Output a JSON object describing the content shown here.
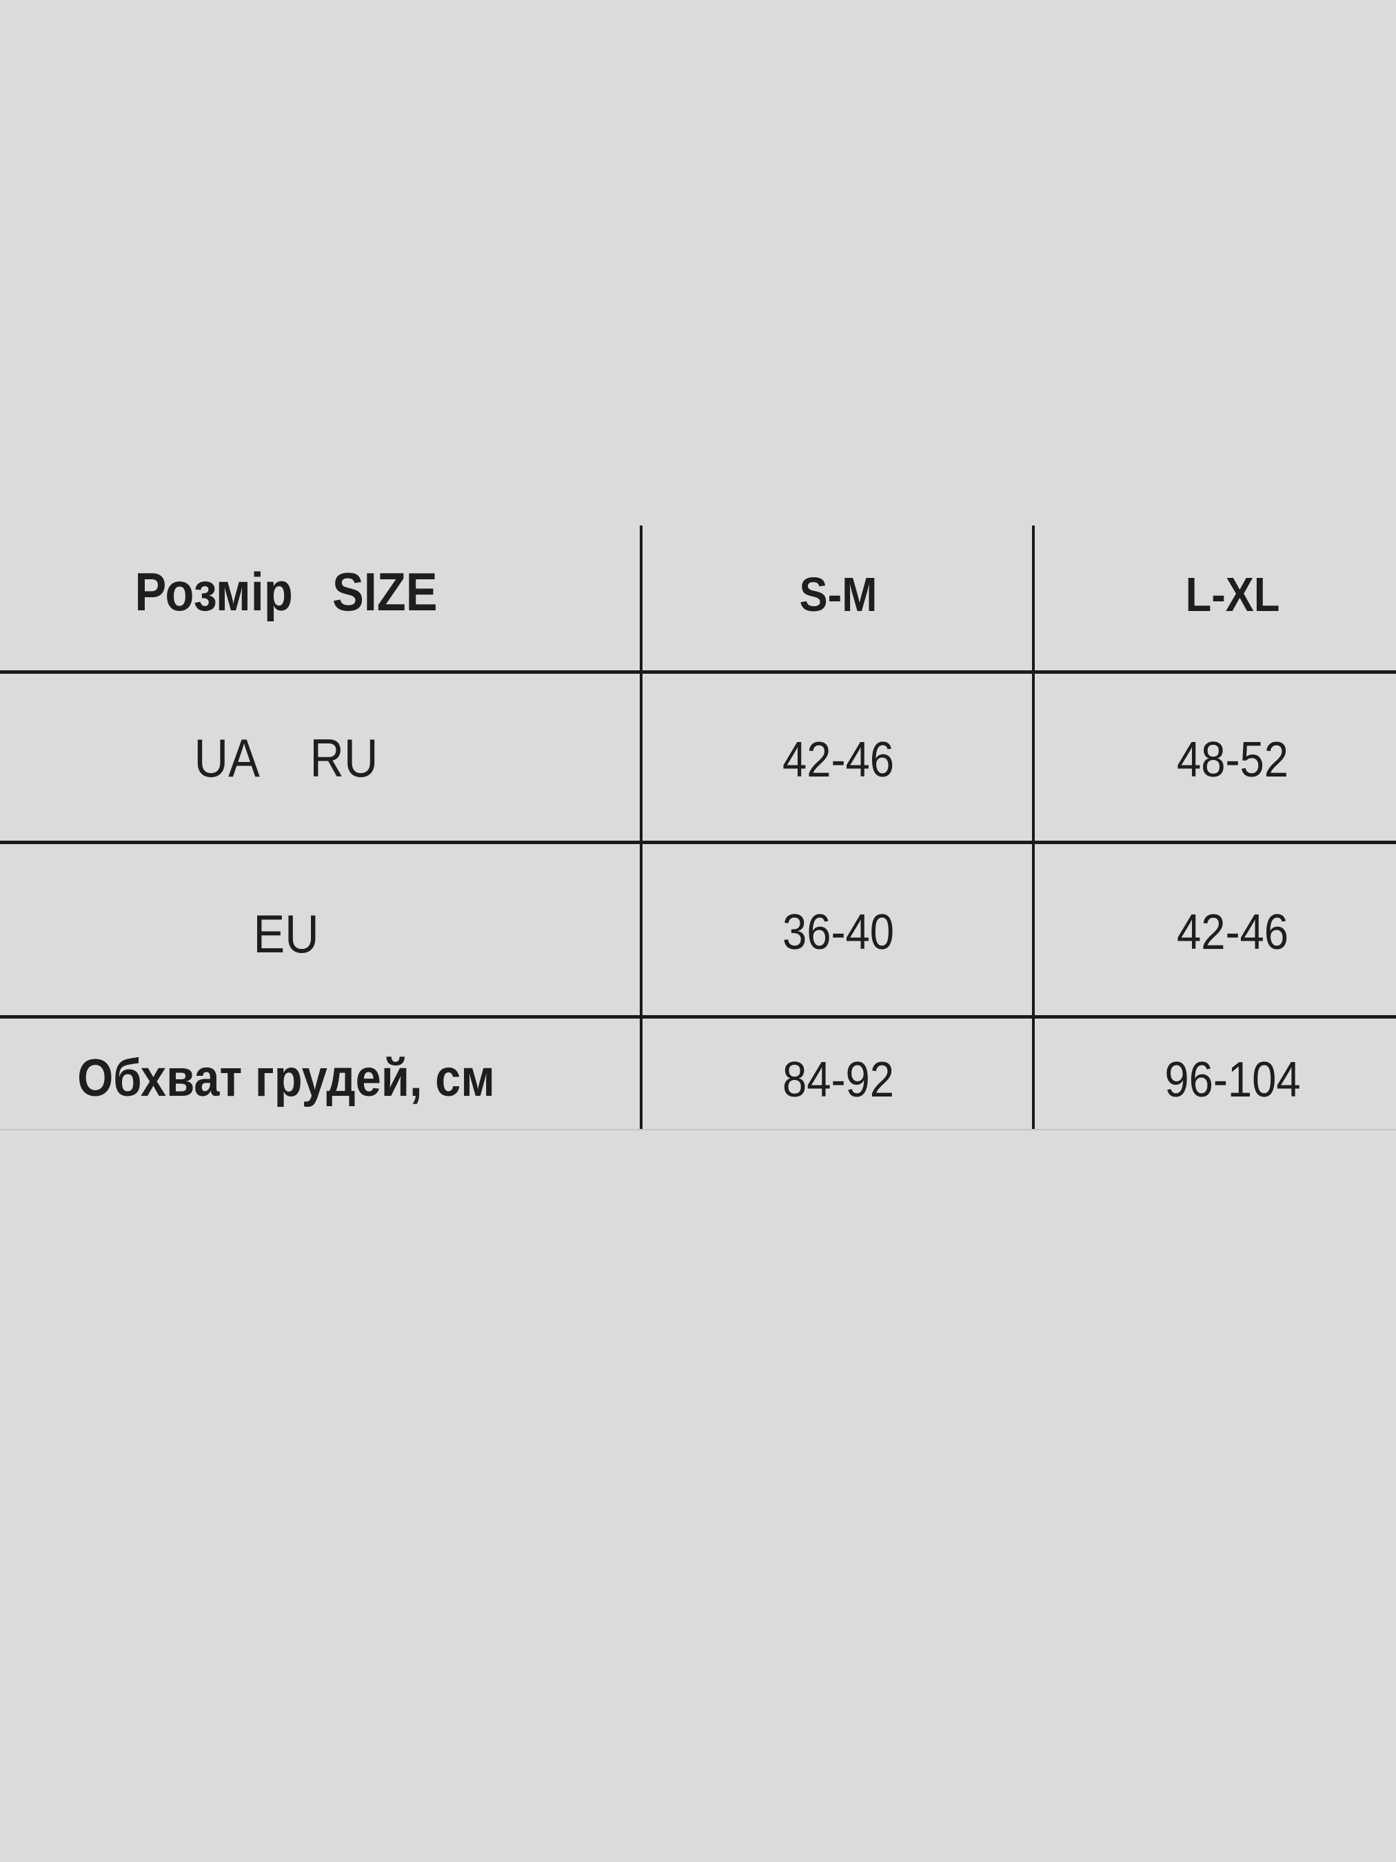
{
  "size_table": {
    "header": {
      "label": "Розмір   SIZE",
      "columns": [
        "S-M",
        "L-XL"
      ]
    },
    "rows": [
      {
        "label": "UA    RU",
        "values": [
          "42-46",
          "48-52"
        ]
      },
      {
        "label": "EU",
        "values": [
          "36-40",
          "42-46"
        ]
      },
      {
        "label": "Обхват грудей, см",
        "values": [
          "84-92",
          "96-104"
        ]
      }
    ]
  },
  "colors": {
    "background": "#dbdbdb",
    "lines": "#1a1a1a",
    "text": "#1e1e1e"
  }
}
